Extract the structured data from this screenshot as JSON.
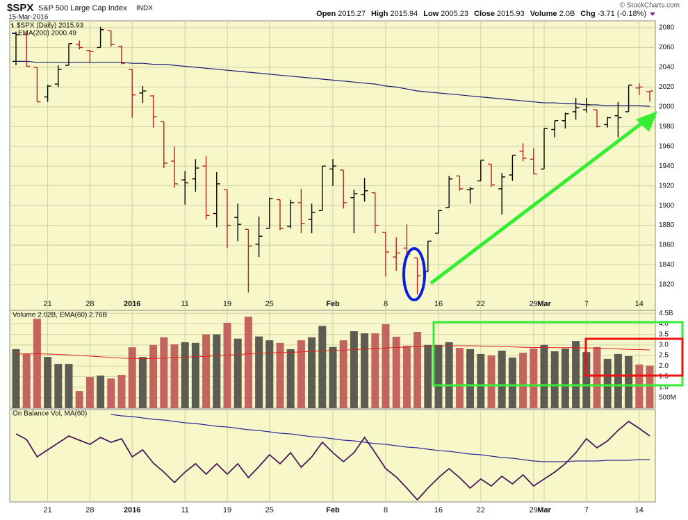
{
  "header": {
    "symbol": "$SPX",
    "name": "S&P 500 Large Cap Index",
    "exchange": "INDX",
    "date": "15-Mar-2016",
    "copyright": "© StockCharts.com",
    "quote": [
      {
        "label": "Open",
        "value": "2015.27"
      },
      {
        "label": "High",
        "value": "2015.94"
      },
      {
        "label": "Low",
        "value": "2005.23"
      },
      {
        "label": "Close",
        "value": "2015.93"
      },
      {
        "label": "Volume",
        "value": "2.0B"
      },
      {
        "label": "Chg",
        "value": "-3.71 (-0.18%)"
      }
    ]
  },
  "chart_data": [
    {
      "type": "ohlc",
      "categories": [
        null,
        null,
        null,
        "21",
        null,
        null,
        null,
        "28",
        null,
        null,
        null,
        "2016",
        null,
        null,
        null,
        null,
        "11",
        null,
        null,
        null,
        "19",
        null,
        null,
        null,
        "25",
        null,
        null,
        null,
        null,
        null,
        "Feb",
        null,
        null,
        null,
        null,
        "8",
        null,
        null,
        null,
        null,
        "16",
        null,
        null,
        null,
        "22",
        null,
        null,
        null,
        null,
        "29",
        "Mar",
        null,
        null,
        null,
        "7",
        null,
        null,
        null,
        null,
        "14",
        null
      ],
      "series": [
        {
          "name": "$SPX (Daily) 2015.93",
          "up_color": "#000000",
          "down_color": "#b22222",
          "open": [
            2046,
            2073,
            2040,
            2010,
            2023,
            2042,
            2063,
            2057,
            2060,
            2077,
            2061,
            2038,
            2014,
            2011,
            1985,
            1945,
            1926,
            1927,
            1940,
            1892,
            1916,
            1888,
            1876,
            1861,
            1877,
            1906,
            1879,
            1903,
            1886,
            1895,
            1937,
            1936,
            1908,
            1911,
            1913,
            1873,
            1848,
            1857,
            1847,
            1833,
            1872,
            1898,
            1930,
            1916,
            1925,
            1942,
            1917,
            1931,
            1955,
            1947,
            1937,
            1977,
            1986,
            1995,
            1997,
            1997,
            1982,
            1991,
            1995,
            2019,
            2015.27
          ],
          "high": [
            2076,
            2077,
            2040,
            2022,
            2042,
            2064,
            2067,
            2057,
            2081,
            2077,
            2062,
            2038,
            2021,
            2012,
            1985,
            1960,
            1935,
            1947,
            1950,
            1934,
            1916,
            1902,
            1876,
            1889,
            1908,
            1906,
            1906,
            1917,
            1902,
            1940,
            1947,
            1936,
            1916,
            1928,
            1913,
            1873,
            1868,
            1881,
            1847,
            1864,
            1895,
            1930,
            1930,
            1919,
            1946,
            1942,
            1933,
            1951,
            1963,
            1958,
            1978,
            1986,
            1994,
            2009,
            2009,
            1997,
            1990,
            2005,
            2022,
            2024,
            2015.94
          ],
          "low": [
            2042,
            2041,
            2005,
            2005,
            2020,
            2042,
            2058,
            2044,
            2060,
            2061,
            2043,
            1989,
            2004,
            1979,
            1938,
            1918,
            1901,
            1914,
            1886,
            1878,
            1857,
            1864,
            1812,
            1848,
            1877,
            1875,
            1877,
            1872,
            1872,
            1895,
            1920,
            1897,
            1872,
            1904,
            1872,
            1828,
            1834,
            1851,
            1810,
            1833,
            1872,
            1898,
            1915,
            1902,
            1925,
            1919,
            1891,
            1925,
            1945,
            1932,
            1937,
            1969,
            1978,
            1987,
            1994,
            1979,
            1979,
            1969,
            1995,
            2012,
            2005.23
          ],
          "close": [
            2073,
            2041,
            2005,
            2021,
            2038,
            2064,
            2060,
            2056,
            2078,
            2063,
            2044,
            2012,
            2016,
            1990,
            1943,
            1922,
            1923,
            1938,
            1890,
            1922,
            1880,
            1881,
            1859,
            1869,
            1907,
            1877,
            1903,
            1882,
            1893,
            1940,
            1940,
            1903,
            1912,
            1915,
            1880,
            1853,
            1852,
            1851,
            1829,
            1864,
            1895,
            1927,
            1917,
            1917,
            1946,
            1921,
            1929,
            1951,
            1948,
            1932,
            1978,
            1986,
            1993,
            1999,
            2002,
            1980,
            1989,
            1989,
            2022,
            2020,
            2015.93
          ]
        },
        {
          "name": "EMA(200) 2000.49",
          "color": "#1c1c78",
          "values": [
            2046,
            2046,
            2045,
            2045,
            2045,
            2045,
            2045,
            2045,
            2045,
            2045,
            2045,
            2044,
            2044,
            2043,
            2043,
            2042,
            2041,
            2040,
            2039,
            2038,
            2037,
            2036,
            2035,
            2034,
            2033,
            2032,
            2031,
            2030,
            2029,
            2028,
            2027,
            2026,
            2025,
            2024,
            2023,
            2021,
            2020,
            2018,
            2016,
            2015,
            2014,
            2013,
            2012,
            2011,
            2010,
            2009,
            2008,
            2007,
            2006,
            2005,
            2004,
            2004,
            2003,
            2003,
            2002,
            2002,
            2001,
            2001,
            2001,
            2001,
            2000.49
          ]
        }
      ],
      "ylim": [
        1794,
        2087
      ],
      "yticks": [
        1820,
        1840,
        1860,
        1880,
        1900,
        1920,
        1940,
        1960,
        1980,
        2000,
        2020,
        2040,
        2060,
        2080
      ],
      "grid": true
    },
    {
      "type": "bar",
      "legend": "Volume 2.02B, EMA(60) 2.76B",
      "up_color": "#5c5c52",
      "down_color": "#c46460",
      "series": [
        {
          "values": [
            2.8,
            2.57,
            4.24,
            2.43,
            2.1,
            2.1,
            0.82,
            1.48,
            1.55,
            1.41,
            1.58,
            2.89,
            2.43,
            3.0,
            3.36,
            3.03,
            3.13,
            3.1,
            3.5,
            3.5,
            4.05,
            3.3,
            4.34,
            3.4,
            3.22,
            3.1,
            2.8,
            3.22,
            3.36,
            3.9,
            2.9,
            3.22,
            3.65,
            3.55,
            3.55,
            3.98,
            3.39,
            2.96,
            3.62,
            3.0,
            3.0,
            3.13,
            2.86,
            2.8,
            2.57,
            2.5,
            2.73,
            2.4,
            2.63,
            2.83,
            3.0,
            2.7,
            2.83,
            3.19,
            2.66,
            2.9,
            2.34,
            2.57,
            2.47,
            2.07,
            2.02
          ]
        },
        {
          "type": "line",
          "color": "#e02020",
          "values": [
            2.57,
            2.58,
            2.58,
            2.57,
            2.55,
            2.53,
            2.5,
            2.47,
            2.44,
            2.41,
            2.38,
            2.36,
            2.35,
            2.36,
            2.38,
            2.4,
            2.42,
            2.44,
            2.46,
            2.49,
            2.52,
            2.54,
            2.58,
            2.6,
            2.62,
            2.64,
            2.65,
            2.67,
            2.69,
            2.72,
            2.73,
            2.75,
            2.78,
            2.8,
            2.83,
            2.86,
            2.88,
            2.9,
            2.92,
            2.93,
            2.95,
            2.96,
            2.96,
            2.96,
            2.95,
            2.93,
            2.92,
            2.91,
            2.89,
            2.88,
            2.88,
            2.87,
            2.87,
            2.87,
            2.86,
            2.85,
            2.83,
            2.81,
            2.79,
            2.78,
            2.76
          ]
        }
      ],
      "ylim": [
        0,
        4.64
      ],
      "yticks": [
        {
          "value": 0.5,
          "label": "500M"
        },
        {
          "value": 1,
          "label": "1.0"
        },
        1.5,
        {
          "value": 2,
          "label": "2.0"
        },
        2.5,
        {
          "value": 3,
          "label": "3.0"
        },
        3.5,
        {
          "value": 4,
          "label": "4.0"
        },
        {
          "value": 4.5,
          "label": "4.5B"
        }
      ],
      "grid": true
    },
    {
      "type": "line",
      "legend": "On Balance Vol, MA(60)",
      "categories": [
        null,
        null,
        null,
        "21",
        null,
        null,
        null,
        "28",
        null,
        null,
        null,
        "2016",
        null,
        null,
        null,
        null,
        "11",
        null,
        null,
        null,
        "19",
        null,
        null,
        null,
        "25",
        null,
        null,
        null,
        null,
        null,
        "Feb",
        null,
        null,
        null,
        null,
        "8",
        null,
        null,
        null,
        null,
        "16",
        null,
        null,
        null,
        "22",
        null,
        null,
        null,
        null,
        "29",
        "Mar",
        null,
        null,
        null,
        "7",
        null,
        null,
        null,
        null,
        "14",
        null
      ],
      "series": [
        {
          "color": "#4a1858",
          "values": [
            110,
            102,
            77,
            87,
            97,
            107,
            101,
            95,
            105,
            98,
            103,
            77,
            87,
            68,
            55,
            40,
            55,
            67,
            52,
            67,
            52,
            67,
            47,
            63,
            80,
            67,
            83,
            62,
            77,
            98,
            83,
            70,
            83,
            105,
            83,
            60,
            48,
            32,
            15,
            32,
            47,
            60,
            47,
            32,
            45,
            35,
            49,
            38,
            51,
            35,
            45,
            55,
            67,
            83,
            103,
            90,
            100,
            115,
            128,
            118,
            107
          ]
        },
        {
          "color": "#2c2c96",
          "values": [
            null,
            null,
            null,
            null,
            null,
            null,
            null,
            null,
            null,
            138,
            136,
            135,
            133,
            131,
            130,
            128,
            126,
            125,
            123,
            121,
            120,
            118,
            116,
            115,
            113,
            111,
            110,
            108,
            106,
            105,
            103,
            101,
            100,
            98,
            96,
            95,
            93,
            91,
            90,
            88,
            86,
            85,
            83,
            81,
            80,
            78,
            76,
            75,
            73,
            71,
            70,
            70,
            70,
            71,
            71,
            71,
            72,
            72,
            72,
            73,
            73
          ]
        }
      ],
      "ylim": [
        12,
        145
      ],
      "grid": true
    }
  ]
}
